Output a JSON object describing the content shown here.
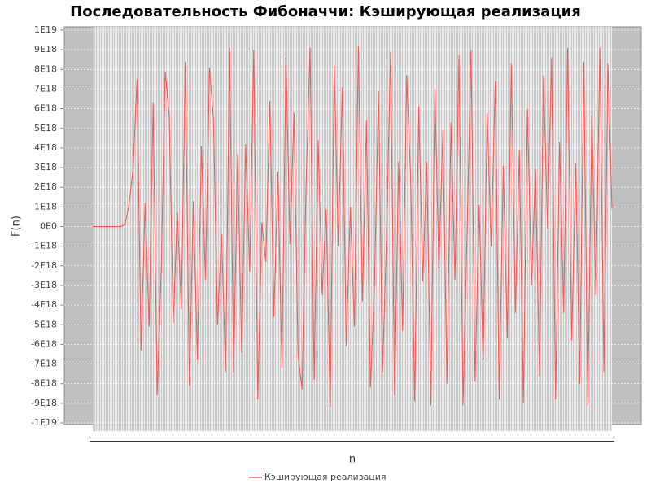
{
  "chart_data": {
    "type": "line",
    "title": "Последовательность Фибоначчи: Кэширующая реализация",
    "x_label": "n",
    "y_label": "F(n)",
    "categories": [
      null,
      null,
      null,
      null,
      null,
      null,
      null,
      null,
      null,
      null,
      null,
      null,
      null,
      null,
      null,
      null,
      null,
      null,
      null,
      null,
      null,
      null,
      null,
      null,
      null,
      null,
      null,
      null,
      null,
      null,
      null,
      null,
      null,
      null,
      null,
      null,
      null,
      null,
      null,
      null,
      null,
      null,
      null,
      null,
      null,
      null,
      null,
      null,
      null,
      null,
      null,
      null,
      null,
      null,
      null,
      null,
      null,
      null,
      null,
      null,
      null,
      null,
      null,
      null,
      null,
      null,
      null,
      null,
      null,
      null,
      null,
      null,
      null,
      null,
      null,
      null,
      null,
      null,
      null,
      null,
      null,
      null,
      null,
      null,
      null,
      null,
      null,
      null,
      null,
      null,
      null,
      null,
      null,
      null,
      null,
      null,
      null,
      null,
      null,
      null,
      null,
      null,
      null,
      null,
      null,
      null,
      null,
      null,
      null,
      null,
      null,
      null,
      null,
      null,
      null,
      null,
      null,
      null,
      null,
      null,
      null,
      null,
      null,
      null,
      null,
      null,
      null,
      null,
      null,
      null
    ],
    "series": [
      {
        "name": "Кэширующая реализация",
        "color": "#ff5555",
        "values": [
          0,
          0,
          0,
          0,
          0,
          0,
          0,
          0,
          1e+17,
          1.1e+18,
          2.9e+18,
          7.5e+18,
          -6.3e+18,
          1.2e+18,
          -5.1e+18,
          6.3e+18,
          -8.6e+18,
          -2.3e+18,
          7.9e+18,
          5.6e+18,
          -4.9e+18,
          7e+17,
          -4.2e+18,
          8.4e+18,
          -8.1e+18,
          1.3e+18,
          -6.8e+18,
          4.1e+18,
          -2.7e+18,
          8.1e+18,
          5.4e+18,
          -5e+18,
          -4e+17,
          -7.4e+18,
          9.1e+18,
          -7.4e+18,
          3.7e+18,
          -6.4e+18,
          4.2e+18,
          -2.3e+18,
          9e+18,
          -8.8e+18,
          2e+17,
          -1.8e+18,
          6.4e+18,
          -4.6e+18,
          2.8e+18,
          -7.2e+18,
          8.6e+18,
          -9e+17,
          5.8e+18,
          -6.5e+18,
          -8.3e+18,
          2.1e+18,
          9.1e+18,
          -7.8e+18,
          4.4e+18,
          -3.5e+18,
          9e+17,
          -9.2e+18,
          8.2e+18,
          -1e+18,
          7.1e+18,
          -6.1e+18,
          1e+18,
          -5.1e+18,
          9.2e+18,
          -3.8e+18,
          5.4e+18,
          -8.2e+18,
          -2.9e+18,
          6.9e+18,
          -7.4e+18,
          -5e+17,
          8.9e+18,
          -8.6e+18,
          3.3e+18,
          -5.3e+18,
          7.7e+18,
          2.4e+18,
          -8.9e+18,
          6.1e+18,
          -2.8e+18,
          3.3e+18,
          -9.1e+18,
          7e+18,
          -2.1e+18,
          4.9e+18,
          -8e+18,
          5.3e+18,
          -2.7e+18,
          8.7e+18,
          -9.1e+18,
          -4e+17,
          9e+18,
          -7.9e+18,
          1.1e+18,
          -6.8e+18,
          5.8e+18,
          -1e+18,
          7.4e+18,
          -8.8e+18,
          3.1e+18,
          -5.7e+18,
          8.3e+18,
          -4.4e+18,
          3.9e+18,
          -9e+18,
          6e+18,
          -3e+18,
          2.9e+18,
          -7.6e+18,
          7.7e+18,
          -1e+17,
          8.6e+18,
          -8.8e+18,
          4.3e+18,
          -4.4e+18,
          9.1e+18,
          -5.8e+18,
          3.2e+18,
          -8e+18,
          8.4e+18,
          -9.1e+18,
          5.6e+18,
          -3.5e+18,
          9.1e+18,
          -7.4e+18,
          8.3e+18,
          9e+17
        ]
      }
    ],
    "ylim": [
      -1e+19,
      1e+19
    ],
    "yticks": [
      {
        "value": -1e+19,
        "label": "-1E19"
      },
      {
        "value": -9e+18,
        "label": "-9E18"
      },
      {
        "value": -8e+18,
        "label": "-8E18"
      },
      {
        "value": -7e+18,
        "label": "-7E18"
      },
      {
        "value": -6e+18,
        "label": "-6E18"
      },
      {
        "value": -5e+18,
        "label": "-5E18"
      },
      {
        "value": -4e+18,
        "label": "-4E18"
      },
      {
        "value": -3e+18,
        "label": "-3E18"
      },
      {
        "value": -2e+18,
        "label": "-2E18"
      },
      {
        "value": -1e+18,
        "label": "-1E18"
      },
      {
        "value": 0,
        "label": "0E0"
      },
      {
        "value": 1e+18,
        "label": "1E18"
      },
      {
        "value": 2e+18,
        "label": "2E18"
      },
      {
        "value": 3e+18,
        "label": "3E18"
      },
      {
        "value": 4e+18,
        "label": "4E18"
      },
      {
        "value": 5e+18,
        "label": "5E18"
      },
      {
        "value": 6e+18,
        "label": "6E18"
      },
      {
        "value": 7e+18,
        "label": "7E18"
      },
      {
        "value": 8e+18,
        "label": "8E18"
      },
      {
        "value": 9e+18,
        "label": "9E18"
      },
      {
        "value": 1e+19,
        "label": "1E19"
      }
    ],
    "grid": true
  }
}
